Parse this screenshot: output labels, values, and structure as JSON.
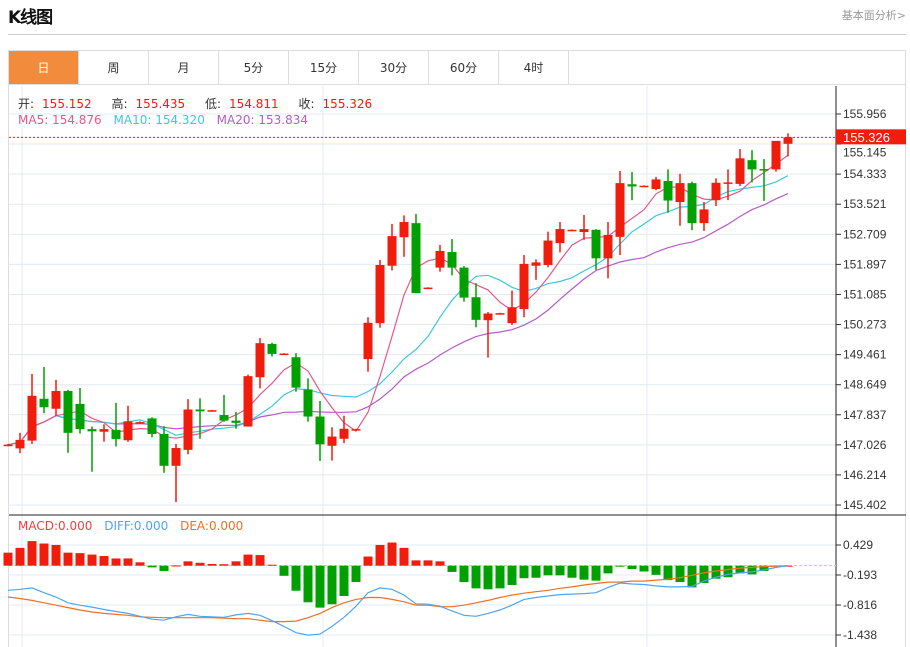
{
  "header": {
    "title": "K线图",
    "link": "基本面分析>"
  },
  "tabs": [
    {
      "label": "日",
      "active": true
    },
    {
      "label": "周"
    },
    {
      "label": "月"
    },
    {
      "label": "5分"
    },
    {
      "label": "15分"
    },
    {
      "label": "30分"
    },
    {
      "label": "60分"
    },
    {
      "label": "4时"
    }
  ],
  "ohlc_legend": {
    "open_label": "开:",
    "open": "155.152",
    "high_label": "高:",
    "high": "155.435",
    "low_label": "低:",
    "low": "154.811",
    "close_label": "收:",
    "close": "155.326"
  },
  "ma_legend": {
    "ma5": "MA5: 154.876",
    "ma10": "MA10: 154.320",
    "ma20": "MA20: 153.834"
  },
  "macd_legend": {
    "macd": "MACD:0.000",
    "diff": "DIFF:0.000",
    "dea": "DEA:0.000"
  },
  "current_price": "155.326",
  "colors": {
    "up": "#f01c0c",
    "down": "#00a000",
    "ma5": "#e8578a",
    "ma10": "#3cc8e0",
    "ma20": "#b55cc8",
    "diff": "#4da6f0",
    "dea": "#f07020",
    "accent": "#f28c3c"
  },
  "chart_data": {
    "type": "candlestick",
    "price_axis": {
      "ticks": [
        "155.956",
        "155.145",
        "154.333",
        "153.521",
        "152.709",
        "151.897",
        "151.085",
        "150.273",
        "149.461",
        "148.649",
        "147.837",
        "147.026",
        "146.214",
        "145.402"
      ],
      "range": [
        145.402,
        155.956
      ]
    },
    "macd_axis": {
      "ticks": [
        "0.429",
        "-0.193",
        "-0.816",
        "-1.438"
      ],
      "range": [
        -1.438,
        0.429
      ]
    },
    "candles": [
      [
        147.03,
        147.05,
        147.0,
        147.03
      ],
      [
        146.93,
        147.35,
        146.8,
        147.16
      ],
      [
        147.14,
        148.94,
        147.05,
        148.35
      ],
      [
        148.27,
        149.13,
        147.88,
        148.04
      ],
      [
        148.0,
        148.78,
        147.81,
        148.48
      ],
      [
        148.48,
        148.51,
        146.81,
        147.35
      ],
      [
        148.13,
        148.56,
        147.33,
        147.45
      ],
      [
        147.45,
        147.52,
        146.3,
        147.39
      ],
      [
        147.38,
        147.58,
        147.11,
        147.45
      ],
      [
        147.43,
        148.16,
        146.98,
        147.18
      ],
      [
        147.15,
        148.08,
        147.11,
        147.66
      ],
      [
        147.64,
        147.66,
        147.62,
        147.64
      ],
      [
        147.74,
        147.77,
        147.23,
        147.32
      ],
      [
        147.32,
        147.53,
        146.27,
        146.46
      ],
      [
        146.46,
        147.05,
        145.48,
        146.94
      ],
      [
        146.89,
        148.26,
        146.77,
        147.98
      ],
      [
        147.98,
        148.28,
        147.19,
        147.93
      ],
      [
        147.96,
        147.97,
        147.95,
        147.96
      ],
      [
        147.83,
        148.37,
        147.65,
        147.68
      ],
      [
        147.68,
        147.91,
        147.46,
        147.62
      ],
      [
        147.52,
        148.92,
        147.52,
        148.88
      ],
      [
        148.85,
        149.91,
        148.55,
        149.77
      ],
      [
        149.75,
        149.78,
        149.41,
        149.48
      ],
      [
        149.49,
        149.5,
        149.48,
        149.49
      ],
      [
        149.39,
        149.5,
        148.46,
        148.57
      ],
      [
        148.52,
        148.82,
        147.65,
        147.79
      ],
      [
        147.79,
        148.21,
        146.59,
        147.04
      ],
      [
        147.0,
        147.5,
        146.6,
        147.25
      ],
      [
        147.19,
        147.81,
        147.07,
        147.46
      ],
      [
        147.45,
        147.46,
        147.44,
        147.45
      ],
      [
        149.34,
        150.47,
        149.0,
        150.32
      ],
      [
        150.31,
        152.02,
        150.19,
        151.88
      ],
      [
        151.86,
        152.99,
        151.73,
        152.66
      ],
      [
        152.63,
        153.22,
        152.1,
        153.04
      ],
      [
        153.01,
        153.26,
        151.12,
        151.12
      ],
      [
        151.27,
        151.28,
        151.26,
        151.27
      ],
      [
        151.81,
        152.42,
        151.7,
        152.26
      ],
      [
        152.23,
        152.58,
        151.6,
        151.81
      ],
      [
        151.81,
        151.85,
        150.89,
        151.0
      ],
      [
        151.01,
        151.39,
        150.2,
        150.4
      ],
      [
        150.39,
        150.61,
        149.38,
        150.57
      ],
      [
        150.58,
        150.59,
        150.57,
        150.58
      ],
      [
        150.31,
        151.19,
        150.26,
        150.74
      ],
      [
        150.69,
        152.15,
        150.47,
        151.91
      ],
      [
        151.86,
        152.03,
        151.48,
        151.95
      ],
      [
        151.88,
        152.78,
        151.82,
        152.54
      ],
      [
        152.47,
        153.04,
        152.22,
        152.85
      ],
      [
        152.83,
        152.84,
        152.82,
        152.83
      ],
      [
        152.77,
        153.23,
        152.56,
        152.85
      ],
      [
        152.83,
        152.85,
        151.75,
        152.06
      ],
      [
        152.06,
        153.04,
        151.52,
        152.69
      ],
      [
        152.64,
        154.42,
        152.15,
        154.09
      ],
      [
        154.06,
        154.39,
        153.63,
        154.0
      ],
      [
        154.02,
        154.03,
        154.01,
        154.02
      ],
      [
        153.93,
        154.26,
        153.9,
        154.19
      ],
      [
        154.15,
        154.46,
        153.29,
        153.62
      ],
      [
        153.58,
        154.34,
        152.94,
        154.09
      ],
      [
        154.09,
        154.13,
        152.82,
        153.01
      ],
      [
        153.01,
        153.58,
        152.8,
        153.38
      ],
      [
        153.63,
        154.22,
        153.47,
        154.1
      ],
      [
        154.1,
        154.46,
        153.63,
        154.11
      ],
      [
        154.07,
        155.01,
        154.01,
        154.76
      ],
      [
        154.71,
        154.98,
        154.11,
        154.46
      ],
      [
        154.47,
        154.74,
        153.61,
        154.46
      ],
      [
        154.46,
        155.23,
        154.4,
        155.23
      ],
      [
        155.152,
        155.435,
        154.811,
        155.326
      ]
    ],
    "macd_hist": [
      0.27,
      0.37,
      0.51,
      0.46,
      0.43,
      0.27,
      0.26,
      0.23,
      0.2,
      0.15,
      0.15,
      0.07,
      -0.035,
      -0.11,
      0.005,
      0.09,
      0.06,
      0.035,
      0.03,
      0.09,
      0.23,
      0.22,
      0.02,
      -0.21,
      -0.52,
      -0.76,
      -0.87,
      -0.8,
      -0.63,
      -0.34,
      0.19,
      0.43,
      0.48,
      0.37,
      0.11,
      0.11,
      0.09,
      -0.13,
      -0.34,
      -0.47,
      -0.49,
      -0.47,
      -0.4,
      -0.26,
      -0.25,
      -0.2,
      -0.2,
      -0.25,
      -0.29,
      -0.31,
      -0.16,
      -0.01,
      -0.07,
      -0.12,
      -0.19,
      -0.3,
      -0.34,
      -0.45,
      -0.36,
      -0.27,
      -0.24,
      -0.16,
      -0.18,
      -0.11,
      -0.01,
      0
    ],
    "diff": [
      -0.51,
      -0.49,
      -0.46,
      -0.56,
      -0.65,
      -0.77,
      -0.82,
      -0.86,
      -0.91,
      -0.95,
      -0.99,
      -1.05,
      -1.11,
      -1.13,
      -1.06,
      -1.01,
      -1.05,
      -1.06,
      -1.07,
      -1.02,
      -0.99,
      -1.03,
      -1.14,
      -1.26,
      -1.39,
      -1.44,
      -1.42,
      -1.26,
      -1.07,
      -0.84,
      -0.56,
      -0.46,
      -0.49,
      -0.61,
      -0.79,
      -0.8,
      -0.84,
      -0.94,
      -1.03,
      -1.05,
      -0.99,
      -0.92,
      -0.82,
      -0.7,
      -0.66,
      -0.63,
      -0.6,
      -0.59,
      -0.58,
      -0.56,
      -0.45,
      -0.36,
      -0.38,
      -0.39,
      -0.42,
      -0.44,
      -0.44,
      -0.43,
      -0.32,
      -0.24,
      -0.18,
      -0.15,
      -0.13,
      -0.09,
      -0.035,
      0
    ],
    "dea": [
      -0.65,
      -0.68,
      -0.72,
      -0.77,
      -0.82,
      -0.87,
      -0.92,
      -0.96,
      -0.99,
      -1.01,
      -1.03,
      -1.06,
      -1.07,
      -1.08,
      -1.08,
      -1.08,
      -1.08,
      -1.08,
      -1.09,
      -1.1,
      -1.1,
      -1.13,
      -1.16,
      -1.16,
      -1.15,
      -1.08,
      -0.99,
      -0.87,
      -0.77,
      -0.7,
      -0.66,
      -0.66,
      -0.7,
      -0.75,
      -0.82,
      -0.82,
      -0.85,
      -0.85,
      -0.82,
      -0.77,
      -0.72,
      -0.66,
      -0.61,
      -0.57,
      -0.54,
      -0.51,
      -0.47,
      -0.44,
      -0.4,
      -0.37,
      -0.34,
      -0.34,
      -0.32,
      -0.32,
      -0.3,
      -0.28,
      -0.25,
      -0.2,
      -0.15,
      -0.11,
      -0.08,
      -0.05,
      -0.035,
      -0.02,
      -0.01,
      0
    ]
  }
}
